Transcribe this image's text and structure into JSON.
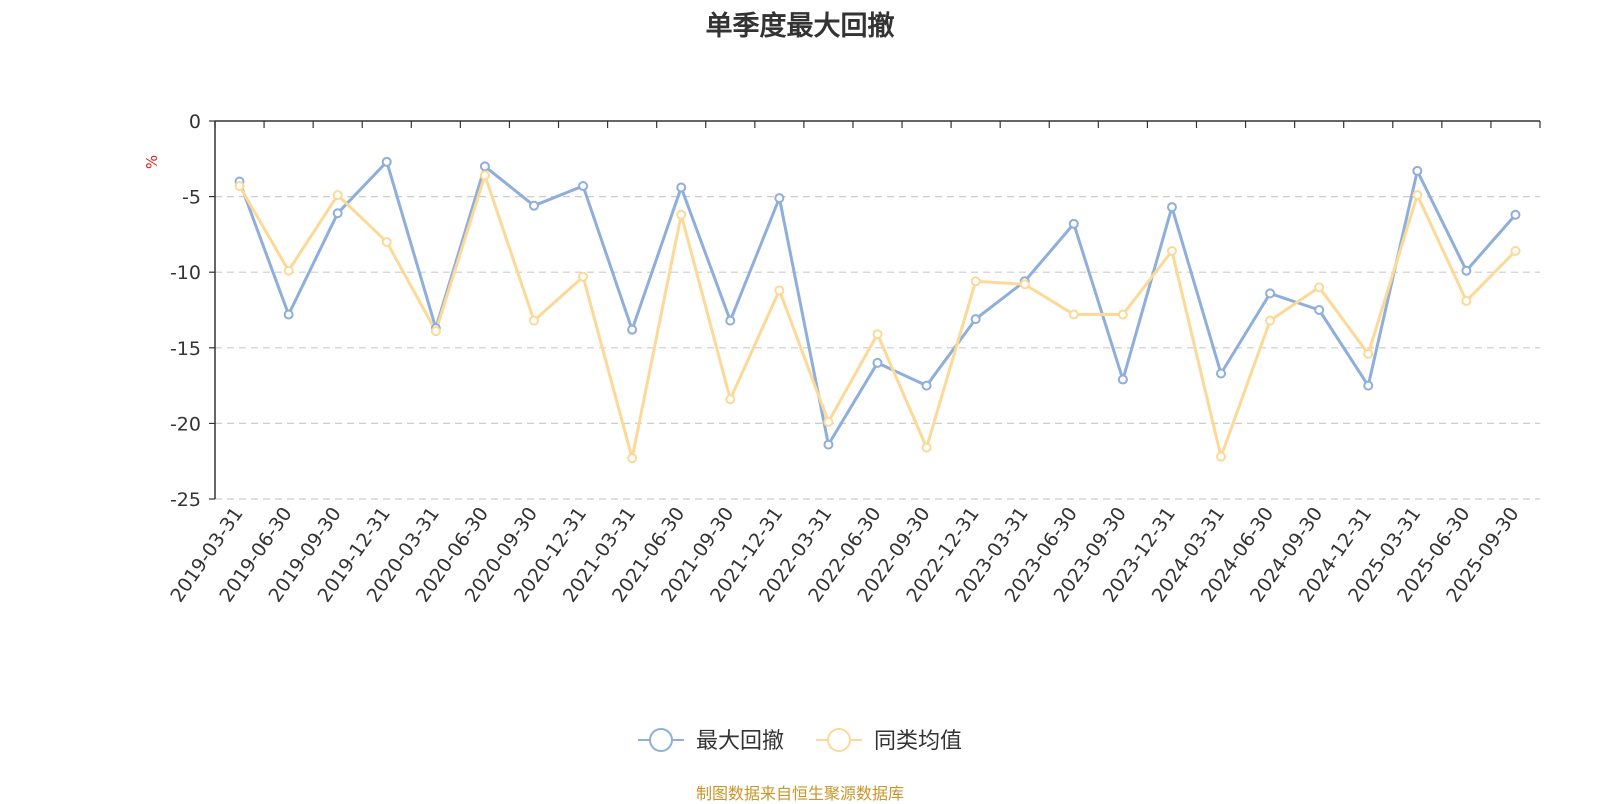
{
  "chart_data": {
    "type": "line",
    "title": "单季度最大回撤",
    "ylabel": "%",
    "xlabel": "",
    "ylim": [
      -25,
      0
    ],
    "yticks": [
      0,
      -5,
      -10,
      -15,
      -20,
      -25
    ],
    "grid": "horizontal dashed",
    "legend_position": "bottom-center",
    "categories": [
      "2019-03-31",
      "2019-06-30",
      "2019-09-30",
      "2019-12-31",
      "2020-03-31",
      "2020-06-30",
      "2020-09-30",
      "2020-12-31",
      "2021-03-31",
      "2021-06-30",
      "2021-09-30",
      "2021-12-31",
      "2022-03-31",
      "2022-06-30",
      "2022-09-30",
      "2022-12-31",
      "2023-03-31",
      "2023-06-30",
      "2023-09-30",
      "2023-12-31",
      "2024-03-31",
      "2024-06-30",
      "2024-09-30",
      "2024-12-31",
      "2025-03-31",
      "2025-06-30",
      "2025-09-30"
    ],
    "series": [
      {
        "name": "最大回撤",
        "color": "#8eaedb",
        "values": [
          -4.0,
          -12.8,
          -6.1,
          -2.7,
          -13.7,
          -3.0,
          -5.6,
          -4.3,
          -13.8,
          -4.4,
          -13.2,
          -5.1,
          -21.4,
          -16.0,
          -17.5,
          -13.1,
          -10.6,
          -6.8,
          -17.1,
          -5.7,
          -16.7,
          -11.4,
          -12.5,
          -17.5,
          -3.3,
          -9.9,
          -6.2
        ]
      },
      {
        "name": "同类均值",
        "color": "#fcd997",
        "values": [
          -4.3,
          -9.9,
          -4.9,
          -8.0,
          -13.9,
          -3.6,
          -13.2,
          -10.3,
          -22.3,
          -6.2,
          -18.4,
          -11.2,
          -19.9,
          -14.1,
          -21.6,
          -10.6,
          -10.8,
          -12.8,
          -12.8,
          -8.6,
          -22.2,
          -13.2,
          -11.0,
          -15.4,
          -4.9,
          -11.9,
          -8.6
        ]
      }
    ]
  },
  "source_note": "制图数据来自恒生聚源数据库"
}
